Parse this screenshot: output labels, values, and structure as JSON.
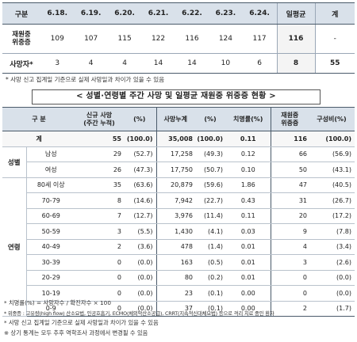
{
  "summary": {
    "header": [
      "구분",
      "6.18.",
      "6.19.",
      "6.20.",
      "6.21.",
      "6.22.",
      "6.23.",
      "6.24.",
      "일평균",
      "계"
    ],
    "rows": [
      {
        "label": "재원중\n위중증",
        "values": [
          "109",
          "107",
          "115",
          "122",
          "116",
          "124",
          "117"
        ],
        "avg": "116",
        "total": "-"
      },
      {
        "label": "사망자*",
        "values": [
          "3",
          "4",
          "4",
          "14",
          "14",
          "10",
          "6"
        ],
        "avg": "8",
        "total": "55"
      }
    ]
  },
  "note1": "* 사망 신고 집계일 기준으로 실제 사망일과 차이가 있을 수 있음",
  "title2": "< 성별·연령별 주간 사망 및 일평균 재원중 위중증 현황 >",
  "detail": {
    "header": {
      "group": "구 분",
      "new_deaths": "신규 사망\n(주간 누적)",
      "pct1": "(%)",
      "cum_deaths": "사망누계",
      "pct2": "(%)",
      "fatality": "치명률(%)",
      "severe": "재원중\n위중증",
      "share": "구성비(%)"
    },
    "total": {
      "label": "계",
      "nd": "55",
      "ndp": "(100.0)",
      "cd": "35,008",
      "cdp": "(100.0)",
      "cfr": "0.11",
      "sv": "116",
      "svp": "(100.0)"
    },
    "sex_group": "성별",
    "sex": [
      {
        "label": "남성",
        "nd": "29",
        "ndp": "(52.7)",
        "cd": "17,258",
        "cdp": "(49.3)",
        "cfr": "0.12",
        "sv": "66",
        "svp": "(56.9)"
      },
      {
        "label": "여성",
        "nd": "26",
        "ndp": "(47.3)",
        "cd": "17,750",
        "cdp": "(50.7)",
        "cfr": "0.10",
        "sv": "50",
        "svp": "(43.1)"
      }
    ],
    "age_group": "연령",
    "age": [
      {
        "label": "80세 이상",
        "nd": "35",
        "ndp": "(63.6)",
        "cd": "20,879",
        "cdp": "(59.6)",
        "cfr": "1.86",
        "sv": "47",
        "svp": "(40.5)"
      },
      {
        "label": "70-79",
        "nd": "8",
        "ndp": "(14.6)",
        "cd": "7,942",
        "cdp": "(22.7)",
        "cfr": "0.43",
        "sv": "31",
        "svp": "(26.7)"
      },
      {
        "label": "60-69",
        "nd": "7",
        "ndp": "(12.7)",
        "cd": "3,976",
        "cdp": "(11.4)",
        "cfr": "0.11",
        "sv": "20",
        "svp": "(17.2)"
      },
      {
        "label": "50-59",
        "nd": "3",
        "ndp": "(5.5)",
        "cd": "1,430",
        "cdp": "(4.1)",
        "cfr": "0.03",
        "sv": "9",
        "svp": "(7.8)"
      },
      {
        "label": "40-49",
        "nd": "2",
        "ndp": "(3.6)",
        "cd": "478",
        "cdp": "(1.4)",
        "cfr": "0.01",
        "sv": "4",
        "svp": "(3.4)"
      },
      {
        "label": "30-39",
        "nd": "0",
        "ndp": "(0.0)",
        "cd": "163",
        "cdp": "(0.5)",
        "cfr": "0.01",
        "sv": "3",
        "svp": "(2.6)"
      },
      {
        "label": "20-29",
        "nd": "0",
        "ndp": "(0.0)",
        "cd": "80",
        "cdp": "(0.2)",
        "cfr": "0.01",
        "sv": "0",
        "svp": "(0.0)"
      },
      {
        "label": "10-19",
        "nd": "0",
        "ndp": "(0.0)",
        "cd": "23",
        "cdp": "(0.1)",
        "cfr": "0.00",
        "sv": "0",
        "svp": "(0.0)"
      },
      {
        "label": "0-9",
        "nd": "0",
        "ndp": "(0.0)",
        "cd": "37",
        "cdp": "(0.1)",
        "cfr": "0.00",
        "sv": "2",
        "svp": "(1.7)"
      }
    ]
  },
  "footnotes": [
    "* 치명률(%) = 사망자수 / 확진자수 × 100",
    "* 위중증 : 고유량(high flow) 산소요법, 인공호흡기, ECMO(체외막산소공급), CRRT(지속적신대체요법) 등으로 격리 치료 중인 환자",
    "* 사망 신고 집계일 기준으로 실제 사망일과 차이가 있을 수 있음",
    "※ 상기 통계는 모두 추후 역학조사 과정에서 변경될 수 있음"
  ]
}
